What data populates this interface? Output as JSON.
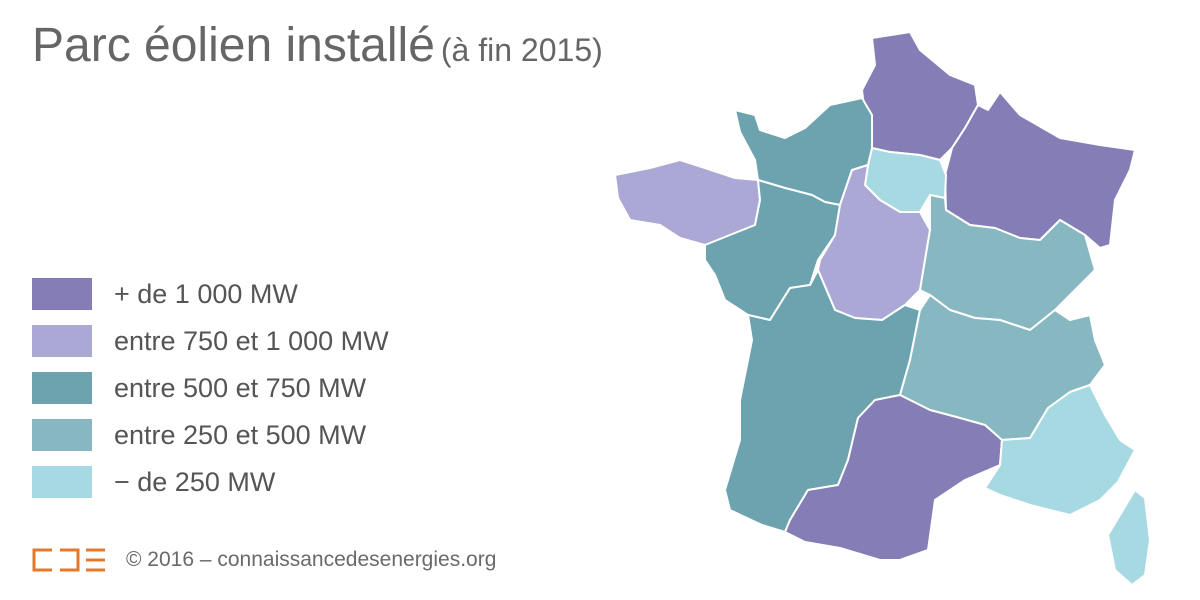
{
  "title": {
    "main": "Parc éolien installé",
    "sub": "(à fin 2015)"
  },
  "legend": [
    {
      "label": "+ de 1 000 MW",
      "color": "#857db5"
    },
    {
      "label": "entre 750 et 1 000 MW",
      "color": "#aba8d6"
    },
    {
      "label": "entre 500 et 750 MW",
      "color": "#6ca3ae"
    },
    {
      "label": "entre 250 et 500 MW",
      "color": "#87b7c1"
    },
    {
      "label": "− de 250 MW",
      "color": "#a7d9e3"
    }
  ],
  "footer": {
    "text": "© 2016 – connaissancedesenergies.org",
    "logo_color": "#e5792b"
  },
  "map": {
    "regions": [
      {
        "id": "hauts-de-france",
        "class": 0
      },
      {
        "id": "grand-est",
        "class": 0
      },
      {
        "id": "occitanie",
        "class": 0
      },
      {
        "id": "bretagne",
        "class": 1
      },
      {
        "id": "centre-val-de-loire",
        "class": 1
      },
      {
        "id": "normandie",
        "class": 2
      },
      {
        "id": "pays-de-la-loire",
        "class": 2
      },
      {
        "id": "nouvelle-aquitaine",
        "class": 2
      },
      {
        "id": "bourgogne-franche-comte",
        "class": 3
      },
      {
        "id": "auvergne-rhone-alpes",
        "class": 3
      },
      {
        "id": "ile-de-france",
        "class": 4
      },
      {
        "id": "provence-alpes-cote-d-azur",
        "class": 4
      },
      {
        "id": "corse",
        "class": 4
      }
    ]
  }
}
